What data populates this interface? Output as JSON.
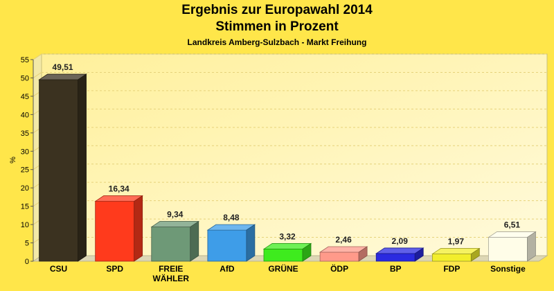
{
  "title": "Ergebnis zur Europawahl 2014",
  "subtitle": "Stimmen in Prozent",
  "subtitle2": "Landkreis Amberg-Sulzbach - Markt Freihung",
  "ylabel": "%",
  "chart_data": {
    "type": "bar",
    "title": "Ergebnis zur Europawahl 2014",
    "subtitle": "Stimmen in Prozent",
    "xlabel": "",
    "ylabel": "%",
    "ylim": [
      0,
      55
    ],
    "yticks": [
      0,
      5,
      10,
      15,
      20,
      25,
      30,
      35,
      40,
      45,
      50,
      55
    ],
    "grid": true,
    "categories": [
      "CSU",
      "SPD",
      "FREIE WÄHLER",
      "AfD",
      "GRÜNE",
      "ÖDP",
      "BP",
      "FDP",
      "Sonstige"
    ],
    "category_lines": [
      [
        "CSU"
      ],
      [
        "SPD"
      ],
      [
        "FREIE",
        "WÄHLER"
      ],
      [
        "AfD"
      ],
      [
        "GRÜNE"
      ],
      [
        "ÖDP"
      ],
      [
        "BP"
      ],
      [
        "FDP"
      ],
      [
        "Sonstige"
      ]
    ],
    "values": [
      49.51,
      16.34,
      9.34,
      8.48,
      3.32,
      2.46,
      2.09,
      1.97,
      6.51
    ],
    "value_labels": [
      "49,51",
      "16,34",
      "9,34",
      "8,48",
      "3,32",
      "2,46",
      "2,09",
      "1,97",
      "6,51"
    ],
    "colors": [
      "#3B3220",
      "#FF3A1C",
      "#6E9977",
      "#3E9DE8",
      "#3EEB1E",
      "#FF9A8A",
      "#2A2AE0",
      "#F2EE2C",
      "#FFFDE8"
    ]
  }
}
